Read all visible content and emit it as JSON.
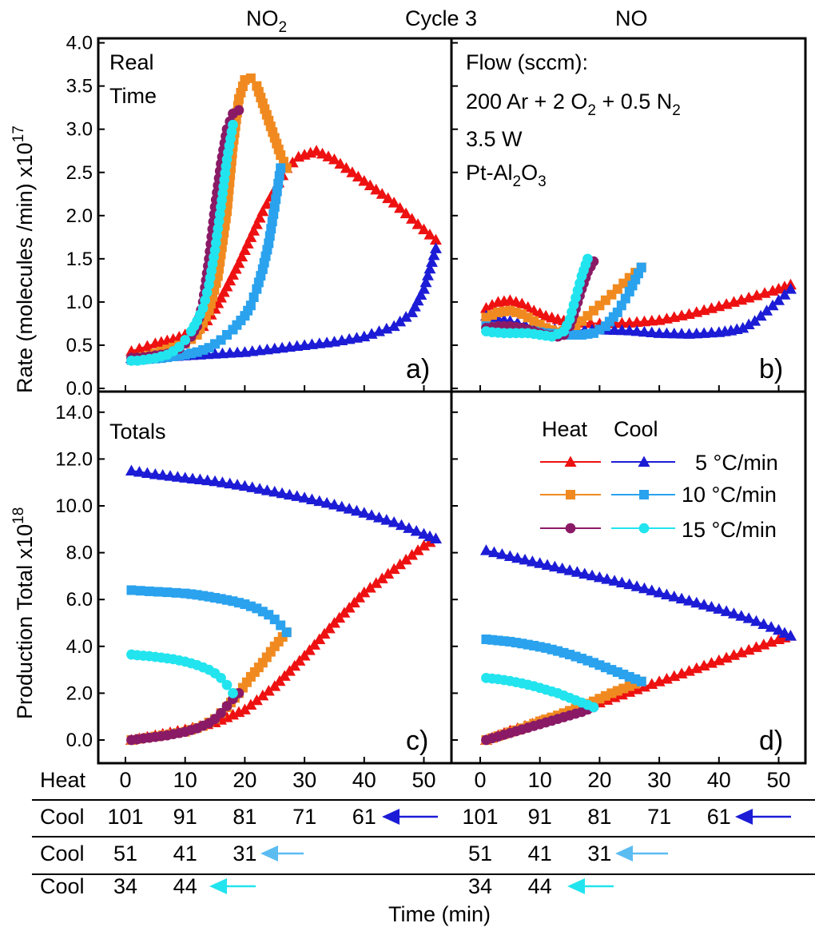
{
  "header": {
    "left_gas": "NO",
    "left_gas_sub": "2",
    "cycle": "Cycle 3",
    "right_gas": "NO"
  },
  "axes": {
    "top_ylabel_main": "Rate (molecules /min) x10",
    "top_ylabel_exp": "17",
    "bottom_ylabel_main": "Production Total x10",
    "bottom_ylabel_exp": "18",
    "top_yticks": [
      "0.0",
      "0.5",
      "1.0",
      "1.5",
      "2.0",
      "2.5",
      "3.0",
      "3.5",
      "4.0"
    ],
    "bottom_yticks": [
      "0.0",
      "2.0",
      "4.0",
      "6.0",
      "8.0",
      "10.0",
      "12.0",
      "14.0"
    ],
    "xlabel": "Time (min)"
  },
  "panels": {
    "a": {
      "label": "a)",
      "note1": "Real",
      "note2": "Time"
    },
    "b": {
      "label": "b)",
      "flow_title": "Flow (sccm):",
      "flow_a": "200 Ar + 2 O",
      "flow_a_sub": "2",
      "flow_b": " + 0.5 N",
      "flow_b_sub": "2",
      "power": "3.5 W",
      "cat_a": "Pt-Al",
      "cat_a_sub": "2",
      "cat_b": "O",
      "cat_b_sub": "3"
    },
    "c": {
      "label": "c)",
      "note": "Totals"
    },
    "d": {
      "label": "d)"
    }
  },
  "legend": {
    "heat": "Heat",
    "cool": "Cool",
    "rates": [
      "5 °C/min",
      "10 °C/min",
      "15 °C/min"
    ]
  },
  "time_table": {
    "heat_label": "Heat",
    "heat_ticks": [
      "0",
      "10",
      "20",
      "30",
      "40",
      "50"
    ],
    "cool_label": "Cool",
    "row1": [
      "101",
      "91",
      "81",
      "71",
      "61"
    ],
    "row2": [
      "51",
      "41",
      "31"
    ],
    "row3": [
      "34",
      "44"
    ]
  },
  "colors": {
    "heat_5": "#ee1111",
    "cool_5": "#1c1cd6",
    "heat_10": "#f08a20",
    "cool_10": "#2aa2ee",
    "heat_15": "#8a1a66",
    "cool_15": "#22e4ee",
    "arrow_1": "#1c1cd6",
    "arrow_2": "#5bbcf2",
    "arrow_3": "#22e4ee"
  },
  "chart_data": [
    {
      "panel": "a",
      "type": "scatter",
      "gas": "NO2",
      "quantity": "rate",
      "xlim": [
        -3,
        55
      ],
      "ylim": [
        -0.08,
        4.0
      ],
      "series": [
        {
          "id": "heat5",
          "kind": "heat",
          "rate": "5 °C/min",
          "marker": "triangle",
          "color": "#ee1111",
          "x": [
            1,
            5,
            8,
            11,
            13,
            15,
            17,
            19,
            21,
            23,
            25,
            27,
            29,
            32,
            35,
            40,
            45,
            49,
            52
          ],
          "y": [
            0.43,
            0.52,
            0.57,
            0.65,
            0.72,
            0.92,
            1.18,
            1.45,
            1.75,
            2.05,
            2.3,
            2.55,
            2.68,
            2.75,
            2.65,
            2.4,
            2.15,
            1.9,
            1.72
          ]
        },
        {
          "id": "cool5",
          "kind": "cool",
          "rate": "5 °C/min",
          "marker": "triangle",
          "color": "#1c1cd6",
          "x": [
            52,
            50,
            48,
            45,
            40,
            35,
            30,
            25,
            20,
            15,
            10,
            5,
            1
          ],
          "y": [
            1.62,
            1.15,
            0.88,
            0.72,
            0.6,
            0.54,
            0.5,
            0.46,
            0.42,
            0.4,
            0.38,
            0.36,
            0.35
          ]
        },
        {
          "id": "heat10",
          "kind": "heat",
          "rate": "10 °C/min",
          "marker": "square",
          "color": "#f08a20",
          "x": [
            1,
            4,
            7,
            10,
            12,
            14,
            15.5,
            17,
            18,
            19,
            20,
            21,
            22,
            23,
            24,
            25,
            26,
            27
          ],
          "y": [
            0.33,
            0.38,
            0.45,
            0.52,
            0.62,
            0.9,
            1.3,
            2.05,
            2.8,
            3.35,
            3.57,
            3.59,
            3.5,
            3.3,
            3.1,
            2.9,
            2.7,
            2.55
          ]
        },
        {
          "id": "cool10",
          "kind": "cool",
          "rate": "10 °C/min",
          "marker": "square",
          "color": "#2aa2ee",
          "x": [
            26,
            25,
            24,
            23,
            22,
            21,
            20,
            18,
            16,
            14,
            12,
            10,
            8,
            6,
            4,
            2,
            1
          ],
          "y": [
            2.55,
            2.1,
            1.68,
            1.38,
            1.15,
            0.96,
            0.84,
            0.68,
            0.56,
            0.47,
            0.42,
            0.39,
            0.37,
            0.35,
            0.34,
            0.33,
            0.33
          ]
        },
        {
          "id": "heat15",
          "kind": "heat",
          "rate": "15 °C/min",
          "marker": "circle",
          "color": "#8a1a66",
          "x": [
            1,
            3,
            5,
            7,
            9,
            10,
            11,
            12,
            13,
            14,
            15,
            16,
            17,
            18,
            19
          ],
          "y": [
            0.35,
            0.36,
            0.38,
            0.4,
            0.46,
            0.52,
            0.6,
            0.72,
            1.0,
            1.5,
            2.1,
            2.6,
            3.0,
            3.18,
            3.22
          ]
        },
        {
          "id": "cool15",
          "kind": "cool",
          "rate": "15 °C/min",
          "marker": "circle",
          "color": "#22e4ee",
          "x": [
            18,
            17,
            16,
            15,
            14,
            13,
            12,
            11,
            10,
            9,
            8,
            7,
            6,
            5,
            4,
            3,
            2,
            1
          ],
          "y": [
            3.05,
            2.65,
            2.1,
            1.6,
            1.2,
            0.93,
            0.78,
            0.66,
            0.56,
            0.48,
            0.43,
            0.39,
            0.37,
            0.35,
            0.34,
            0.33,
            0.32,
            0.32
          ]
        }
      ]
    },
    {
      "panel": "b",
      "type": "scatter",
      "gas": "NO",
      "quantity": "rate",
      "xlim": [
        -3,
        55
      ],
      "ylim": [
        -0.08,
        4.0
      ],
      "series": [
        {
          "id": "heat5",
          "kind": "heat",
          "rate": "5 °C/min",
          "marker": "triangle",
          "color": "#ee1111",
          "x": [
            1,
            3,
            5,
            7,
            9,
            11,
            13,
            15,
            17,
            20,
            25,
            30,
            35,
            40,
            45,
            49,
            52
          ],
          "y": [
            0.93,
            1.0,
            1.02,
            0.98,
            0.9,
            0.84,
            0.8,
            0.77,
            0.76,
            0.75,
            0.76,
            0.79,
            0.86,
            0.95,
            1.05,
            1.13,
            1.2
          ]
        },
        {
          "id": "cool5",
          "kind": "cool",
          "rate": "5 °C/min",
          "marker": "triangle",
          "color": "#1c1cd6",
          "x": [
            52,
            50,
            48,
            46,
            44,
            42,
            40,
            35,
            30,
            25,
            20,
            15,
            10,
            5,
            2,
            1
          ],
          "y": [
            1.15,
            1.02,
            0.9,
            0.78,
            0.7,
            0.67,
            0.65,
            0.63,
            0.64,
            0.67,
            0.68,
            0.67,
            0.7,
            0.78,
            0.82,
            0.84
          ]
        },
        {
          "id": "heat10",
          "kind": "heat",
          "rate": "10 °C/min",
          "marker": "square",
          "color": "#f08a20",
          "x": [
            1,
            3,
            5,
            7,
            9,
            11,
            13,
            15,
            17,
            19,
            21,
            23,
            25,
            27
          ],
          "y": [
            0.82,
            0.88,
            0.9,
            0.86,
            0.78,
            0.7,
            0.65,
            0.68,
            0.78,
            0.9,
            1.02,
            1.15,
            1.28,
            1.4
          ]
        },
        {
          "id": "cool10",
          "kind": "cool",
          "rate": "10 °C/min",
          "marker": "square",
          "color": "#2aa2ee",
          "x": [
            27,
            25,
            23,
            21,
            19,
            17,
            15,
            13,
            11,
            9,
            7,
            5,
            3,
            1
          ],
          "y": [
            1.4,
            1.12,
            0.88,
            0.72,
            0.64,
            0.62,
            0.62,
            0.63,
            0.64,
            0.66,
            0.68,
            0.7,
            0.71,
            0.72
          ]
        },
        {
          "id": "heat15",
          "kind": "heat",
          "rate": "15 °C/min",
          "marker": "circle",
          "color": "#8a1a66",
          "x": [
            1,
            3,
            5,
            7,
            9,
            11,
            13,
            14,
            15,
            16,
            17,
            18,
            19
          ],
          "y": [
            0.7,
            0.72,
            0.72,
            0.7,
            0.66,
            0.62,
            0.6,
            0.62,
            0.72,
            0.92,
            1.15,
            1.35,
            1.47
          ]
        },
        {
          "id": "cool15",
          "kind": "cool",
          "rate": "15 °C/min",
          "marker": "circle",
          "color": "#22e4ee",
          "x": [
            18,
            17,
            16,
            15,
            14,
            12,
            10,
            8,
            6,
            4,
            2,
            1
          ],
          "y": [
            1.5,
            1.3,
            1.05,
            0.8,
            0.66,
            0.6,
            0.62,
            0.64,
            0.64,
            0.64,
            0.65,
            0.66
          ]
        }
      ]
    },
    {
      "panel": "c",
      "type": "scatter",
      "gas": "NO2",
      "quantity": "total",
      "xlim": [
        -3,
        55
      ],
      "ylim": [
        -0.3,
        14.0
      ],
      "series": [
        {
          "id": "heat5",
          "kind": "heat",
          "rate": "5 °C/min",
          "marker": "triangle",
          "color": "#ee1111",
          "x": [
            1,
            5,
            10,
            15,
            20,
            25,
            30,
            35,
            40,
            45,
            50,
            52
          ],
          "y": [
            0.0,
            0.2,
            0.45,
            0.75,
            1.3,
            2.3,
            3.6,
            5.0,
            6.3,
            7.3,
            8.3,
            8.6
          ]
        },
        {
          "id": "cool5",
          "kind": "cool",
          "rate": "5 °C/min",
          "marker": "triangle",
          "color": "#1c1cd6",
          "x": [
            52,
            50,
            45,
            40,
            35,
            30,
            25,
            20,
            15,
            10,
            5,
            1
          ],
          "y": [
            8.6,
            8.8,
            9.3,
            9.7,
            10.05,
            10.35,
            10.6,
            10.85,
            11.05,
            11.2,
            11.35,
            11.5
          ]
        },
        {
          "id": "heat10",
          "kind": "heat",
          "rate": "10 °C/min",
          "marker": "square",
          "color": "#f08a20",
          "x": [
            1,
            5,
            10,
            13,
            15,
            17,
            19,
            21,
            23,
            25,
            27
          ],
          "y": [
            0.0,
            0.15,
            0.35,
            0.6,
            0.9,
            1.4,
            2.0,
            2.7,
            3.3,
            4.0,
            4.6
          ]
        },
        {
          "id": "cool10",
          "kind": "cool",
          "rate": "10 °C/min",
          "marker": "square",
          "color": "#2aa2ee",
          "x": [
            27,
            26,
            25,
            24,
            22,
            20,
            18,
            16,
            14,
            12,
            10,
            7,
            4,
            1
          ],
          "y": [
            4.6,
            4.9,
            5.15,
            5.35,
            5.62,
            5.8,
            5.93,
            6.03,
            6.12,
            6.2,
            6.26,
            6.31,
            6.35,
            6.4
          ]
        },
        {
          "id": "heat15",
          "kind": "heat",
          "rate": "15 °C/min",
          "marker": "circle",
          "color": "#8a1a66",
          "x": [
            1,
            4,
            7,
            10,
            12,
            14,
            15,
            16,
            17,
            18,
            19
          ],
          "y": [
            0.0,
            0.1,
            0.2,
            0.35,
            0.5,
            0.72,
            0.9,
            1.15,
            1.45,
            1.75,
            2.0
          ]
        },
        {
          "id": "cool15",
          "kind": "cool",
          "rate": "15 °C/min",
          "marker": "circle",
          "color": "#22e4ee",
          "x": [
            18,
            17,
            16,
            15,
            14,
            12,
            10,
            8,
            6,
            4,
            2,
            1
          ],
          "y": [
            2.0,
            2.35,
            2.65,
            2.85,
            3.0,
            3.2,
            3.35,
            3.45,
            3.52,
            3.58,
            3.62,
            3.65
          ]
        }
      ]
    },
    {
      "panel": "d",
      "type": "scatter",
      "gas": "NO",
      "quantity": "total",
      "xlim": [
        -3,
        55
      ],
      "ylim": [
        -0.3,
        14.0
      ],
      "series": [
        {
          "id": "heat5",
          "kind": "heat",
          "rate": "5 °C/min",
          "marker": "triangle",
          "color": "#ee1111",
          "x": [
            1,
            5,
            10,
            15,
            20,
            25,
            30,
            35,
            40,
            45,
            50,
            52
          ],
          "y": [
            0.0,
            0.4,
            0.8,
            1.2,
            1.6,
            2.05,
            2.5,
            2.95,
            3.4,
            3.85,
            4.3,
            4.45
          ]
        },
        {
          "id": "cool5",
          "kind": "cool",
          "rate": "5 °C/min",
          "marker": "triangle",
          "color": "#1c1cd6",
          "x": [
            52,
            50,
            45,
            40,
            35,
            30,
            25,
            20,
            15,
            10,
            5,
            1
          ],
          "y": [
            4.45,
            4.7,
            5.2,
            5.6,
            5.95,
            6.3,
            6.65,
            6.95,
            7.25,
            7.55,
            7.85,
            8.1
          ]
        },
        {
          "id": "heat10",
          "kind": "heat",
          "rate": "10 °C/min",
          "marker": "square",
          "color": "#f08a20",
          "x": [
            1,
            4,
            7,
            10,
            13,
            16,
            19,
            22,
            25,
            27
          ],
          "y": [
            0.0,
            0.25,
            0.5,
            0.8,
            1.05,
            1.35,
            1.65,
            2.0,
            2.3,
            2.5
          ]
        },
        {
          "id": "cool10",
          "kind": "cool",
          "rate": "10 °C/min",
          "marker": "square",
          "color": "#2aa2ee",
          "x": [
            27,
            25,
            23,
            21,
            19,
            17,
            15,
            13,
            11,
            9,
            7,
            5,
            3,
            1
          ],
          "y": [
            2.5,
            2.7,
            2.9,
            3.1,
            3.3,
            3.48,
            3.65,
            3.8,
            3.93,
            4.03,
            4.12,
            4.2,
            4.25,
            4.3
          ]
        },
        {
          "id": "heat15",
          "kind": "heat",
          "rate": "15 °C/min",
          "marker": "circle",
          "color": "#8a1a66",
          "x": [
            1,
            3,
            5,
            7,
            9,
            11,
            13,
            15,
            17,
            19
          ],
          "y": [
            0.0,
            0.15,
            0.3,
            0.45,
            0.6,
            0.75,
            0.9,
            1.05,
            1.2,
            1.4
          ]
        },
        {
          "id": "cool15",
          "kind": "cool",
          "rate": "15 °C/min",
          "marker": "circle",
          "color": "#22e4ee",
          "x": [
            19,
            17,
            15,
            13,
            11,
            9,
            7,
            5,
            3,
            1
          ],
          "y": [
            1.4,
            1.6,
            1.8,
            2.0,
            2.15,
            2.3,
            2.42,
            2.52,
            2.6,
            2.65
          ]
        }
      ]
    }
  ]
}
